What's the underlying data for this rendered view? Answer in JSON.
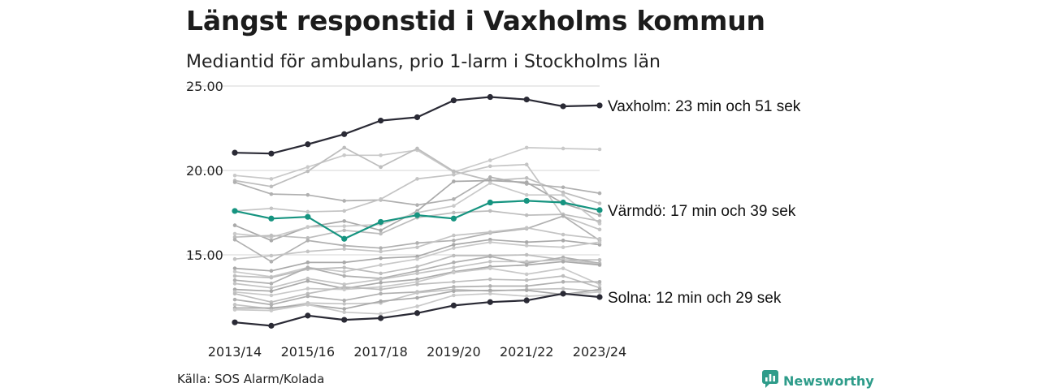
{
  "title": "Längst responstid i Vaxholms kommun",
  "subtitle": "Mediantid för ambulans, prio 1-larm i Stockholms län",
  "source": "Källa: SOS Alarm/Kolada",
  "brand": {
    "name": "Newsworthy",
    "icon": "newsworthy-logo-icon",
    "color": "#2e9c8a"
  },
  "chart_data": {
    "type": "line",
    "x": [
      "2013/14",
      "2014/15",
      "2015/16",
      "2016/17",
      "2017/18",
      "2018/19",
      "2019/20",
      "2020/21",
      "2021/22",
      "2022/23",
      "2023/24"
    ],
    "x_tick_labels": [
      "2013/14",
      "2015/16",
      "2017/18",
      "2019/20",
      "2021/22",
      "2023/24"
    ],
    "ylim": [
      10.5,
      25.0
    ],
    "y_ticks": [
      15,
      20,
      25
    ],
    "y_tick_labels": [
      "15.00",
      "20.00",
      "25.00"
    ],
    "grid": "horizontal",
    "colors": {
      "highlight_dark": "#2a2a35",
      "highlight_teal": "#169480",
      "background_lines": "#c6c6c6",
      "grid": "#dddddd"
    },
    "annotated_series": [
      {
        "label": "Vaxholm: 23 min och 51 sek",
        "color": "#2a2a35",
        "values": [
          21.05,
          21.0,
          21.55,
          22.15,
          22.95,
          23.15,
          24.15,
          24.35,
          24.2,
          23.8,
          23.85
        ]
      },
      {
        "label": "Värmdö: 17 min och 39 sek",
        "color": "#169480",
        "values": [
          17.6,
          17.15,
          17.25,
          15.95,
          16.95,
          17.35,
          17.15,
          18.1,
          18.2,
          18.1,
          17.65
        ]
      },
      {
        "label": "Solna: 12 min och 29 sek",
        "color": "#2a2a35",
        "values": [
          11.0,
          10.8,
          11.4,
          11.15,
          11.25,
          11.55,
          12.0,
          12.2,
          12.3,
          12.7,
          12.5
        ]
      }
    ],
    "other_series": [
      [
        19.7,
        19.5,
        20.2,
        20.9,
        20.9,
        21.2,
        19.9,
        20.6,
        21.35,
        21.3,
        21.25
      ],
      [
        19.4,
        19.05,
        19.95,
        21.35,
        20.2,
        21.3,
        19.95,
        19.4,
        19.55,
        18.7,
        18.05
      ],
      [
        19.3,
        18.6,
        18.55,
        18.2,
        18.25,
        17.95,
        18.3,
        19.6,
        19.2,
        19.0,
        18.65
      ],
      [
        17.6,
        17.75,
        17.55,
        17.6,
        18.3,
        19.5,
        19.75,
        20.25,
        20.35,
        17.3,
        16.5
      ],
      [
        16.75,
        15.85,
        16.65,
        17.0,
        16.45,
        17.6,
        19.35,
        19.4,
        19.3,
        18.05,
        17.35
      ],
      [
        16.25,
        16.05,
        16.65,
        16.7,
        16.8,
        17.5,
        17.9,
        19.25,
        18.55,
        18.55,
        16.85
      ],
      [
        16.05,
        16.15,
        16.0,
        16.45,
        16.25,
        17.2,
        17.5,
        17.6,
        17.35,
        17.4,
        17.0
      ],
      [
        15.9,
        14.6,
        15.85,
        15.55,
        15.4,
        15.7,
        15.85,
        16.3,
        16.55,
        17.3,
        15.85
      ],
      [
        14.75,
        14.95,
        15.2,
        15.35,
        15.2,
        15.45,
        16.15,
        16.35,
        16.6,
        16.2,
        15.95
      ],
      [
        14.2,
        14.05,
        14.55,
        14.55,
        14.8,
        14.9,
        15.6,
        15.9,
        15.75,
        15.85,
        15.6
      ],
      [
        14.0,
        13.7,
        14.25,
        14.0,
        14.4,
        14.75,
        15.4,
        15.75,
        15.55,
        15.45,
        15.75
      ],
      [
        13.75,
        13.65,
        14.15,
        14.25,
        13.9,
        14.3,
        14.95,
        14.95,
        15.0,
        14.7,
        14.7
      ],
      [
        13.5,
        13.3,
        14.25,
        13.75,
        13.6,
        14.05,
        14.55,
        14.9,
        14.5,
        14.85,
        14.5
      ],
      [
        13.3,
        13.05,
        13.6,
        13.25,
        13.55,
        13.9,
        14.25,
        14.6,
        14.6,
        14.7,
        14.45
      ],
      [
        12.95,
        12.85,
        13.45,
        13.0,
        13.35,
        13.55,
        14.0,
        14.3,
        14.4,
        14.6,
        14.4
      ],
      [
        12.8,
        12.6,
        13.0,
        12.95,
        13.1,
        13.4,
        13.95,
        14.2,
        13.85,
        14.2,
        13.25
      ],
      [
        12.7,
        12.2,
        12.7,
        13.1,
        12.95,
        13.25,
        13.4,
        13.55,
        13.5,
        13.75,
        13.05
      ],
      [
        12.35,
        12.05,
        12.55,
        12.3,
        12.7,
        12.8,
        13.1,
        13.15,
        13.15,
        13.4,
        13.4
      ],
      [
        12.05,
        11.8,
        12.15,
        12.1,
        12.15,
        12.75,
        12.95,
        12.85,
        12.95,
        13.0,
        12.85
      ],
      [
        11.85,
        11.85,
        12.05,
        11.8,
        12.25,
        12.45,
        12.85,
        12.9,
        12.9,
        12.65,
        12.95
      ],
      [
        11.75,
        11.7,
        12.05,
        11.6,
        11.5,
        11.95,
        12.6,
        12.7,
        12.55,
        12.65,
        12.8
      ]
    ]
  }
}
